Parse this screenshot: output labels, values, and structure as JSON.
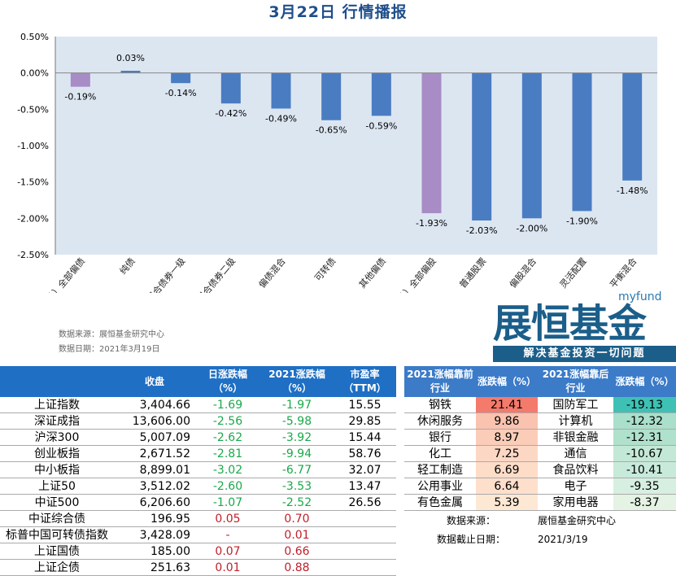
{
  "title": "3月22日 行情播报",
  "chart_data": {
    "type": "bar",
    "title": "3月22日 行情播报",
    "ylim": [
      -2.5,
      0.5
    ],
    "yticks": [
      "0.50%",
      "0.00%",
      "-0.50%",
      "-1.00%",
      "-1.50%",
      "-2.00%",
      "-2.50%"
    ],
    "categories": [
      "（总）全部偏债",
      "纯债",
      "混合债券一级",
      "混合债券二级",
      "偏债混合",
      "可转债",
      "其他偏债",
      "（总）全部偏股",
      "普通股票",
      "偏股混合",
      "灵活配置",
      "平衡混合"
    ],
    "values": [
      -0.19,
      0.03,
      -0.14,
      -0.42,
      -0.49,
      -0.65,
      -0.59,
      -1.93,
      -2.03,
      -2.0,
      -1.9,
      -1.48
    ],
    "labels": [
      "-0.19%",
      "0.03%",
      "-0.14%",
      "-0.42%",
      "-0.49%",
      "-0.65%",
      "-0.59%",
      "-1.93%",
      "-2.03%",
      "-2.00%",
      "-1.90%",
      "-1.48%"
    ],
    "colors": {
      "total": "#a88cc6",
      "bar": "#4a7cc2",
      "plot_bg": "#dce6f1"
    },
    "grid": false
  },
  "source": "数据来源：展恒基金研究中心",
  "date": "数据日期：2021年3月19日",
  "logo": {
    "en": "myfund",
    "cn": "展恒基金",
    "slogan": "解决基金投资一切问题"
  },
  "index_table": {
    "headers": [
      "",
      "收盘",
      "日涨跌幅\n（%）",
      "2021涨跌幅\n（%）",
      "市盈率\n（TTM）"
    ],
    "rows": [
      [
        "上证指数",
        "3,404.66",
        "-1.69",
        "-1.97",
        "15.55"
      ],
      [
        "深证成指",
        "13,606.00",
        "-2.56",
        "-5.98",
        "29.85"
      ],
      [
        "沪深300",
        "5,007.09",
        "-2.62",
        "-3.92",
        "15.44"
      ],
      [
        "创业板指",
        "2,671.52",
        "-2.81",
        "-9.94",
        "58.76"
      ],
      [
        "中小板指",
        "8,899.01",
        "-3.02",
        "-6.77",
        "32.07"
      ],
      [
        "上证50",
        "3,512.02",
        "-2.60",
        "-3.53",
        "13.47"
      ],
      [
        "中证500",
        "6,206.60",
        "-1.07",
        "-2.52",
        "26.56"
      ],
      [
        "中证综合债",
        "196.95",
        "0.05",
        "0.70",
        ""
      ],
      [
        "标普中国可转债指数",
        "3,428.09",
        "-",
        "0.01",
        ""
      ],
      [
        "上证国债",
        "185.00",
        "0.07",
        "0.66",
        ""
      ],
      [
        "上证企债",
        "251.63",
        "0.01",
        "0.88",
        ""
      ]
    ]
  },
  "industry_table": {
    "headers": [
      "2021涨幅靠前\n行业",
      "涨跌幅（%）",
      "2021涨幅靠后\n行业",
      "涨跌幅（%）"
    ],
    "rows": [
      [
        "钢铁",
        "21.41",
        "国防军工",
        "-19.13"
      ],
      [
        "休闲服务",
        "9.86",
        "计算机",
        "-12.32"
      ],
      [
        "银行",
        "8.97",
        "非银金融",
        "-12.31"
      ],
      [
        "化工",
        "7.25",
        "通信",
        "-10.67"
      ],
      [
        "轻工制造",
        "6.69",
        "食品饮料",
        "-10.41"
      ],
      [
        "公用事业",
        "6.64",
        "电子",
        "-9.35"
      ],
      [
        "有色金属",
        "5.39",
        "家用电器",
        "-8.37"
      ]
    ],
    "top_colors": [
      "#f47a6c",
      "#f9c3b0",
      "#fbcdb8",
      "#fcd8c4",
      "#fddcc8",
      "#fddfcb",
      "#fde8d4"
    ],
    "bottom_colors": [
      "#3ec1b4",
      "#a9dfcb",
      "#b0e1cd",
      "#c4e8d6",
      "#c8eadb",
      "#d6efe0",
      "#e4f3e4"
    ],
    "footer": [
      [
        "数据来源：",
        "展恒基金研究中心"
      ],
      [
        "数据截止日期：",
        "2021/3/19"
      ]
    ]
  }
}
